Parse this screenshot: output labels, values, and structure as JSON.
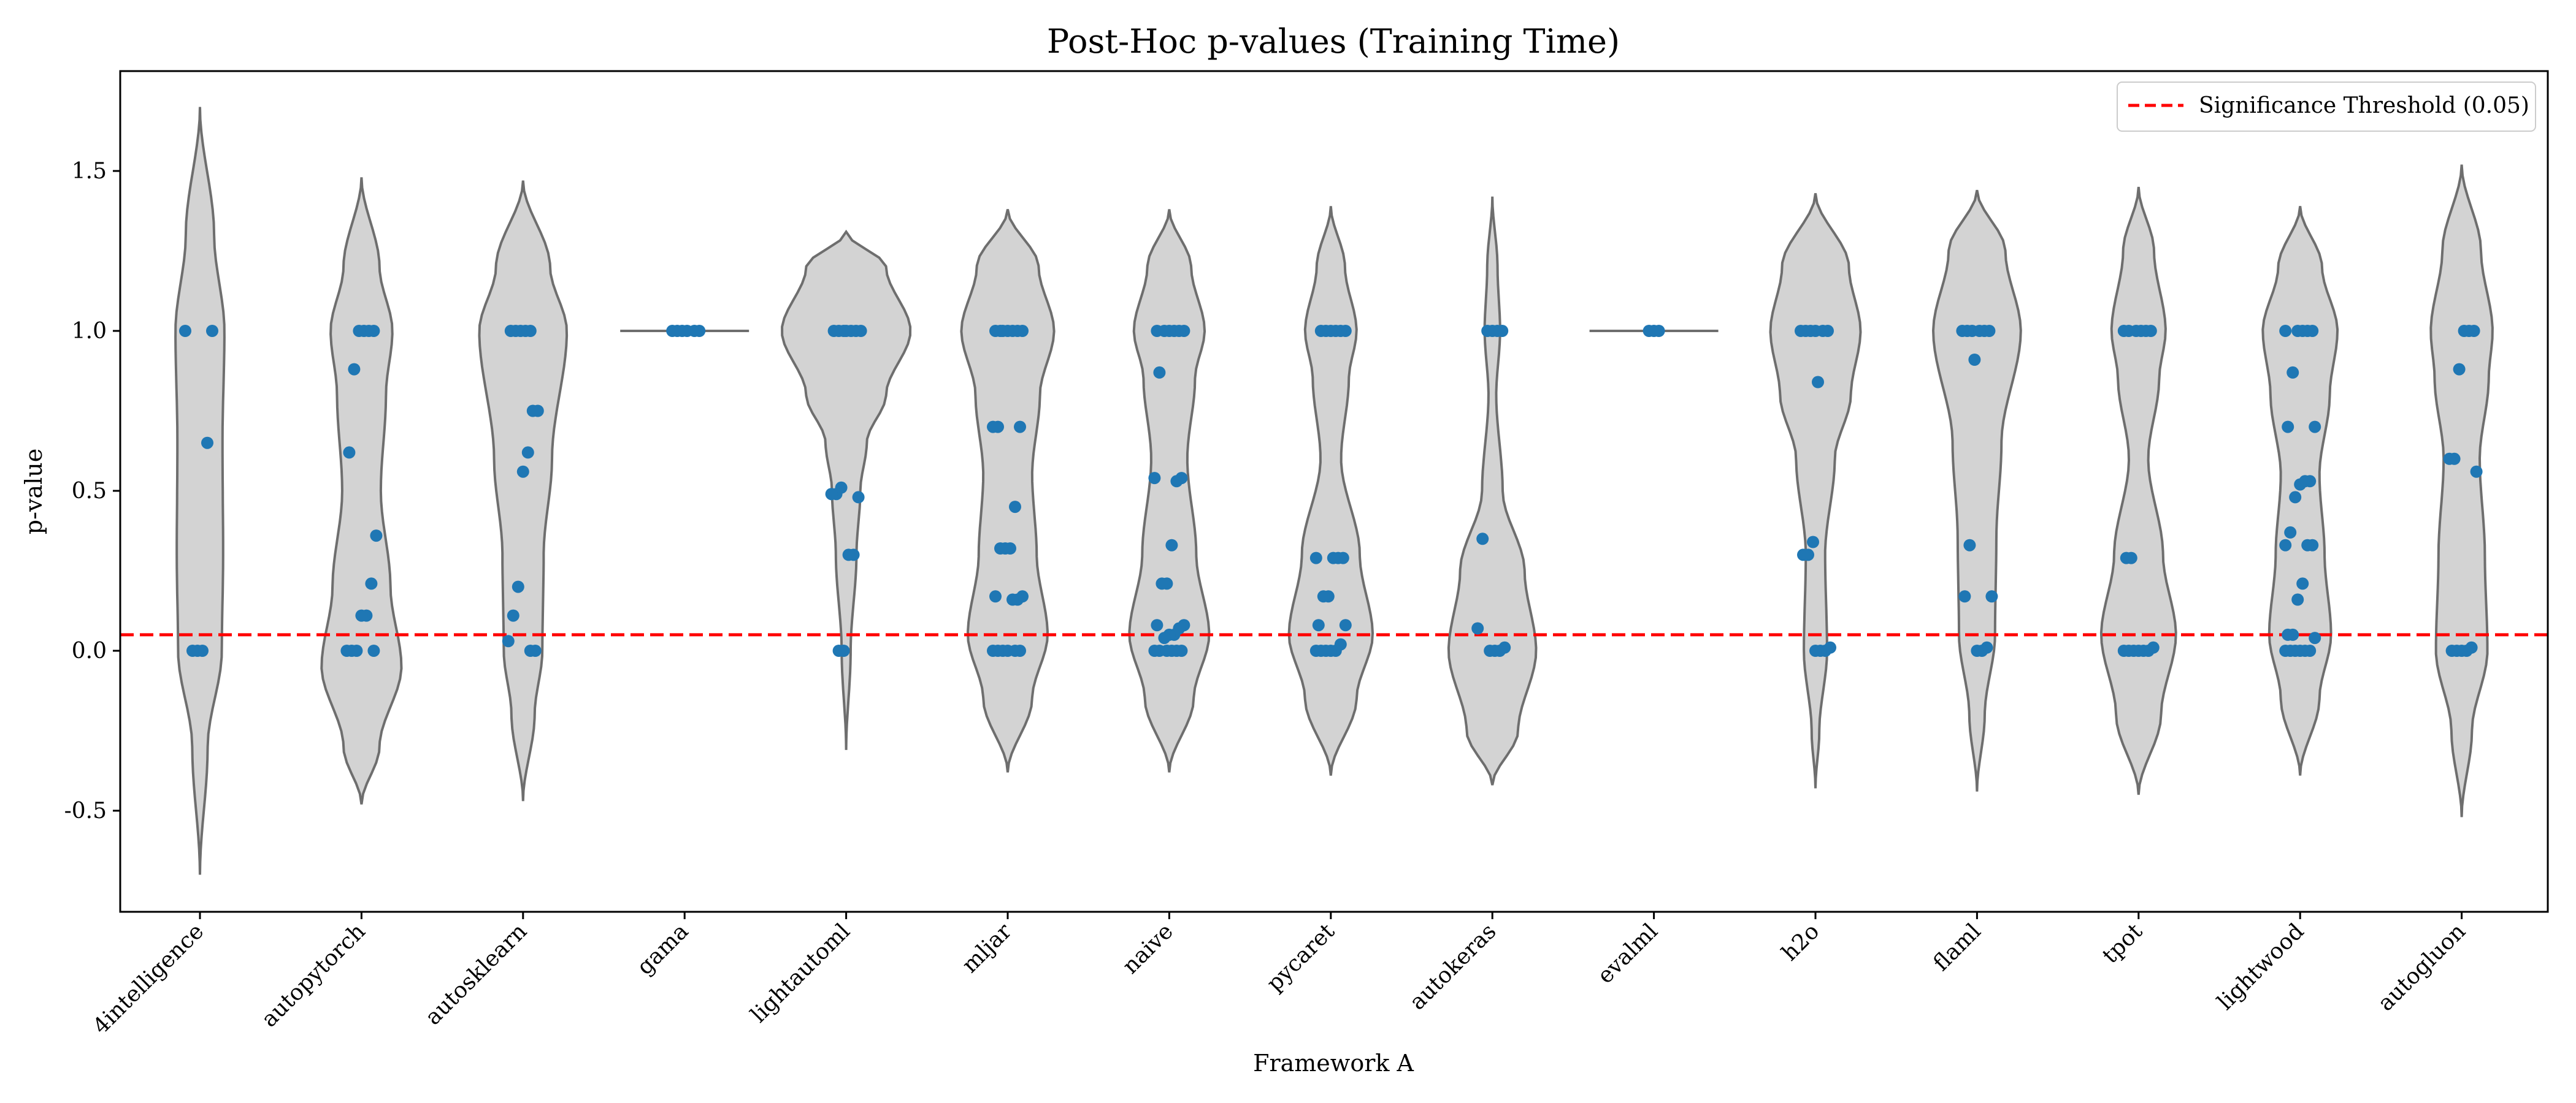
{
  "chart_data": {
    "type": "violin",
    "title": "Post-Hoc p-values (Training Time)",
    "xlabel": "Framework A",
    "ylabel": "p-value",
    "ylim": [
      -0.82,
      1.82
    ],
    "yticks": [
      -0.5,
      0.0,
      0.5,
      1.0,
      1.5
    ],
    "ytick_labels": [
      "-0.5",
      "0.0",
      "0.5",
      "1.0",
      "1.5"
    ],
    "grid": false,
    "legend": {
      "placement": "top-right",
      "entries": [
        "Significance Threshold (0.05)"
      ]
    },
    "threshold": {
      "value": 0.05,
      "label": "Significance Threshold (0.05)",
      "color": "#ff0000"
    },
    "colors": {
      "violin_fill": "#d3d3d3",
      "violin_edge": "#6e6e6e",
      "points": "#1f77b4"
    },
    "categories": [
      "4intelligence",
      "autopytorch",
      "autosklearn",
      "gama",
      "lightautoml",
      "mljar",
      "naive",
      "pycaret",
      "autokeras",
      "evalml",
      "h2o",
      "flaml",
      "tpot",
      "lightwood",
      "autogluon"
    ],
    "violins": [
      {
        "category": "4intelligence",
        "extent": [
          -0.7,
          1.7
        ],
        "shape": [
          [
            -0.7,
            0.0
          ],
          [
            -0.3,
            0.12
          ],
          [
            0.0,
            0.34
          ],
          [
            0.3,
            0.36
          ],
          [
            0.65,
            0.35
          ],
          [
            1.0,
            0.38
          ],
          [
            1.3,
            0.22
          ],
          [
            1.7,
            0.0
          ]
        ]
      },
      {
        "category": "autopytorch",
        "extent": [
          -0.48,
          1.48
        ],
        "shape": [
          [
            -0.48,
            0.0
          ],
          [
            -0.3,
            0.28
          ],
          [
            -0.05,
            0.62
          ],
          [
            0.2,
            0.45
          ],
          [
            0.5,
            0.3
          ],
          [
            0.8,
            0.38
          ],
          [
            1.0,
            0.48
          ],
          [
            1.2,
            0.28
          ],
          [
            1.48,
            0.0
          ]
        ]
      },
      {
        "category": "autosklearn",
        "extent": [
          -0.47,
          1.47
        ],
        "shape": [
          [
            -0.47,
            0.0
          ],
          [
            -0.2,
            0.18
          ],
          [
            0.0,
            0.3
          ],
          [
            0.3,
            0.32
          ],
          [
            0.6,
            0.45
          ],
          [
            1.0,
            0.68
          ],
          [
            1.2,
            0.42
          ],
          [
            1.47,
            0.0
          ]
        ]
      },
      {
        "category": "gama",
        "extent": [
          1.0,
          1.0
        ],
        "shape": []
      },
      {
        "category": "lightautoml",
        "extent": [
          -0.31,
          1.31
        ],
        "shape": [
          [
            -0.31,
            0.0
          ],
          [
            0.0,
            0.07
          ],
          [
            0.3,
            0.16
          ],
          [
            0.5,
            0.22
          ],
          [
            0.65,
            0.32
          ],
          [
            0.8,
            0.62
          ],
          [
            1.0,
            1.0
          ],
          [
            1.2,
            0.62
          ],
          [
            1.31,
            0.0
          ]
        ]
      },
      {
        "category": "mljar",
        "extent": [
          -0.38,
          1.38
        ],
        "shape": [
          [
            -0.38,
            0.0
          ],
          [
            -0.15,
            0.38
          ],
          [
            0.05,
            0.62
          ],
          [
            0.3,
            0.45
          ],
          [
            0.55,
            0.38
          ],
          [
            0.8,
            0.5
          ],
          [
            1.0,
            0.72
          ],
          [
            1.2,
            0.48
          ],
          [
            1.38,
            0.0
          ]
        ]
      },
      {
        "category": "naive",
        "extent": [
          -0.38,
          1.38
        ],
        "shape": [
          [
            -0.38,
            0.0
          ],
          [
            -0.15,
            0.38
          ],
          [
            0.05,
            0.62
          ],
          [
            0.3,
            0.42
          ],
          [
            0.6,
            0.28
          ],
          [
            0.85,
            0.4
          ],
          [
            1.0,
            0.55
          ],
          [
            1.2,
            0.34
          ],
          [
            1.38,
            0.0
          ]
        ]
      },
      {
        "category": "pycaret",
        "extent": [
          -0.39,
          1.39
        ],
        "shape": [
          [
            -0.39,
            0.0
          ],
          [
            -0.15,
            0.4
          ],
          [
            0.05,
            0.65
          ],
          [
            0.3,
            0.45
          ],
          [
            0.6,
            0.16
          ],
          [
            0.85,
            0.28
          ],
          [
            1.0,
            0.4
          ],
          [
            1.2,
            0.22
          ],
          [
            1.39,
            0.0
          ]
        ]
      },
      {
        "category": "autokeras",
        "extent": [
          -0.42,
          1.42
        ],
        "shape": [
          [
            -0.42,
            0.0
          ],
          [
            -0.25,
            0.4
          ],
          [
            0.0,
            0.68
          ],
          [
            0.25,
            0.5
          ],
          [
            0.5,
            0.16
          ],
          [
            0.8,
            0.06
          ],
          [
            1.0,
            0.12
          ],
          [
            1.2,
            0.08
          ],
          [
            1.42,
            0.0
          ]
        ]
      },
      {
        "category": "evalml",
        "extent": [
          1.0,
          1.0
        ],
        "shape": []
      },
      {
        "category": "h2o",
        "extent": [
          -0.43,
          1.43
        ],
        "shape": [
          [
            -0.43,
            0.0
          ],
          [
            -0.25,
            0.06
          ],
          [
            0.0,
            0.18
          ],
          [
            0.3,
            0.15
          ],
          [
            0.6,
            0.3
          ],
          [
            0.8,
            0.55
          ],
          [
            1.0,
            0.7
          ],
          [
            1.2,
            0.52
          ],
          [
            1.43,
            0.0
          ]
        ]
      },
      {
        "category": "flaml",
        "extent": [
          -0.44,
          1.44
        ],
        "shape": [
          [
            -0.44,
            0.0
          ],
          [
            -0.2,
            0.12
          ],
          [
            0.05,
            0.28
          ],
          [
            0.35,
            0.3
          ],
          [
            0.65,
            0.38
          ],
          [
            1.0,
            0.68
          ],
          [
            1.25,
            0.44
          ],
          [
            1.44,
            0.0
          ]
        ]
      },
      {
        "category": "tpot",
        "extent": [
          -0.45,
          1.45
        ],
        "shape": [
          [
            -0.45,
            0.0
          ],
          [
            -0.2,
            0.35
          ],
          [
            0.05,
            0.58
          ],
          [
            0.3,
            0.38
          ],
          [
            0.6,
            0.15
          ],
          [
            0.85,
            0.32
          ],
          [
            1.0,
            0.42
          ],
          [
            1.25,
            0.24
          ],
          [
            1.45,
            0.0
          ]
        ]
      },
      {
        "category": "lightwood",
        "extent": [
          -0.39,
          1.39
        ],
        "shape": [
          [
            -0.39,
            0.0
          ],
          [
            -0.15,
            0.3
          ],
          [
            0.05,
            0.48
          ],
          [
            0.3,
            0.38
          ],
          [
            0.55,
            0.3
          ],
          [
            0.8,
            0.46
          ],
          [
            1.0,
            0.58
          ],
          [
            1.2,
            0.34
          ],
          [
            1.39,
            0.0
          ]
        ]
      },
      {
        "category": "autogluon",
        "extent": [
          -0.52,
          1.52
        ],
        "shape": [
          [
            -0.52,
            0.0
          ],
          [
            -0.25,
            0.16
          ],
          [
            0.0,
            0.4
          ],
          [
            0.3,
            0.36
          ],
          [
            0.6,
            0.28
          ],
          [
            0.85,
            0.42
          ],
          [
            1.0,
            0.48
          ],
          [
            1.25,
            0.3
          ],
          [
            1.52,
            0.0
          ]
        ]
      }
    ],
    "points": [
      {
        "category": "4intelligence",
        "values": [
          1.0,
          1.0,
          0.65,
          0.0,
          0.0,
          0.0
        ]
      },
      {
        "category": "autopytorch",
        "values": [
          1.0,
          1.0,
          1.0,
          1.0,
          0.88,
          0.62,
          0.36,
          0.21,
          0.11,
          0.11,
          0.0,
          0.0,
          0.0,
          0.0
        ]
      },
      {
        "category": "autosklearn",
        "values": [
          1.0,
          1.0,
          1.0,
          1.0,
          1.0,
          0.75,
          0.75,
          0.62,
          0.56,
          0.2,
          0.11,
          0.03,
          0.0,
          0.0
        ]
      },
      {
        "category": "gama",
        "values": [
          1.0,
          1.0,
          1.0,
          1.0,
          1.0,
          1.0
        ]
      },
      {
        "category": "lightautoml",
        "values": [
          1.0,
          1.0,
          1.0,
          1.0,
          1.0,
          1.0,
          1.0,
          0.51,
          0.49,
          0.49,
          0.48,
          0.3,
          0.3,
          0.0,
          0.0
        ]
      },
      {
        "category": "mljar",
        "values": [
          1.0,
          1.0,
          1.0,
          1.0,
          1.0,
          1.0,
          1.0,
          0.7,
          0.7,
          0.7,
          0.45,
          0.32,
          0.32,
          0.32,
          0.17,
          0.17,
          0.16,
          0.16,
          0.0,
          0.0,
          0.0,
          0.0,
          0.0,
          0.0
        ]
      },
      {
        "category": "naive",
        "values": [
          1.0,
          1.0,
          1.0,
          1.0,
          1.0,
          1.0,
          0.87,
          0.54,
          0.54,
          0.53,
          0.33,
          0.21,
          0.21,
          0.08,
          0.08,
          0.07,
          0.05,
          0.05,
          0.04,
          0.0,
          0.0,
          0.0,
          0.0,
          0.0,
          0.0
        ]
      },
      {
        "category": "pycaret",
        "values": [
          1.0,
          1.0,
          1.0,
          1.0,
          1.0,
          1.0,
          0.29,
          0.29,
          0.29,
          0.29,
          0.17,
          0.17,
          0.08,
          0.08,
          0.02,
          0.0,
          0.0,
          0.0,
          0.0,
          0.0
        ]
      },
      {
        "category": "autokeras",
        "values": [
          1.0,
          1.0,
          1.0,
          1.0,
          0.35,
          0.07,
          0.01,
          0.0,
          0.0,
          0.0
        ]
      },
      {
        "category": "evalml",
        "values": [
          1.0,
          1.0,
          1.0
        ]
      },
      {
        "category": "h2o",
        "values": [
          1.0,
          1.0,
          1.0,
          1.0,
          1.0,
          1.0,
          0.84,
          0.34,
          0.3,
          0.3,
          0.01,
          0.0,
          0.0,
          0.0
        ]
      },
      {
        "category": "flaml",
        "values": [
          1.0,
          1.0,
          1.0,
          1.0,
          1.0,
          1.0,
          0.91,
          0.33,
          0.17,
          0.17,
          0.01,
          0.0,
          0.0
        ]
      },
      {
        "category": "tpot",
        "values": [
          1.0,
          1.0,
          1.0,
          1.0,
          1.0,
          1.0,
          0.29,
          0.29,
          0.01,
          0.0,
          0.0,
          0.0,
          0.0,
          0.0,
          0.0
        ]
      },
      {
        "category": "lightwood",
        "values": [
          1.0,
          1.0,
          1.0,
          1.0,
          1.0,
          0.87,
          0.7,
          0.7,
          0.53,
          0.53,
          0.52,
          0.48,
          0.37,
          0.33,
          0.33,
          0.33,
          0.21,
          0.16,
          0.05,
          0.05,
          0.04,
          0.0,
          0.0,
          0.0,
          0.0,
          0.0,
          0.0
        ]
      },
      {
        "category": "autogluon",
        "values": [
          1.0,
          1.0,
          1.0,
          0.88,
          0.6,
          0.6,
          0.56,
          0.01,
          0.0,
          0.0,
          0.0,
          0.0
        ]
      }
    ]
  }
}
